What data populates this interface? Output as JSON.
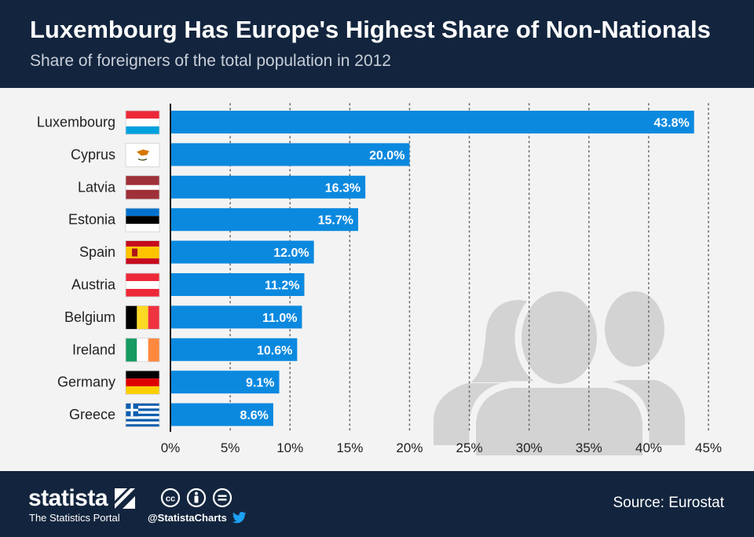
{
  "header": {
    "title": "Luxembourg Has Europe's Highest Share of Non-Nationals",
    "subtitle": "Share of foreigners of the total population in 2012"
  },
  "chart_data": {
    "type": "bar",
    "orientation": "horizontal",
    "categories": [
      "Luxembourg",
      "Cyprus",
      "Latvia",
      "Estonia",
      "Spain",
      "Austria",
      "Belgium",
      "Ireland",
      "Germany",
      "Greece"
    ],
    "values": [
      43.8,
      20.0,
      16.3,
      15.7,
      12.0,
      11.2,
      11.0,
      10.6,
      9.1,
      8.6
    ],
    "value_labels": [
      "43.8%",
      "20.0%",
      "16.3%",
      "15.7%",
      "12.0%",
      "11.2%",
      "11.0%",
      "10.6%",
      "9.1%",
      "8.6%"
    ],
    "flag_icons": [
      "luxembourg-flag-icon",
      "cyprus-flag-icon",
      "latvia-flag-icon",
      "estonia-flag-icon",
      "spain-flag-icon",
      "austria-flag-icon",
      "belgium-flag-icon",
      "ireland-flag-icon",
      "germany-flag-icon",
      "greece-flag-icon"
    ],
    "xlim": [
      0,
      45
    ],
    "xticks": [
      0,
      5,
      10,
      15,
      20,
      25,
      30,
      35,
      40,
      45
    ],
    "xtick_labels": [
      "0%",
      "5%",
      "10%",
      "15%",
      "20%",
      "25%",
      "30%",
      "35%",
      "40%",
      "45%"
    ],
    "grid": "vertical dotted",
    "bar_color": "#0b89df",
    "decoration": "people-silhouette-icon"
  },
  "footer": {
    "brand": "statista",
    "tagline": "The Statistics Portal",
    "handle": "@StatistaCharts",
    "source": "Source: Eurostat",
    "icons": [
      "cc-icon",
      "by-icon",
      "nd-icon",
      "twitter-icon"
    ]
  },
  "colors": {
    "header_bg": "#13253e",
    "chart_bg": "#f3f3f3",
    "bar": "#0b89df",
    "silhouette": "#d3d3d3"
  }
}
